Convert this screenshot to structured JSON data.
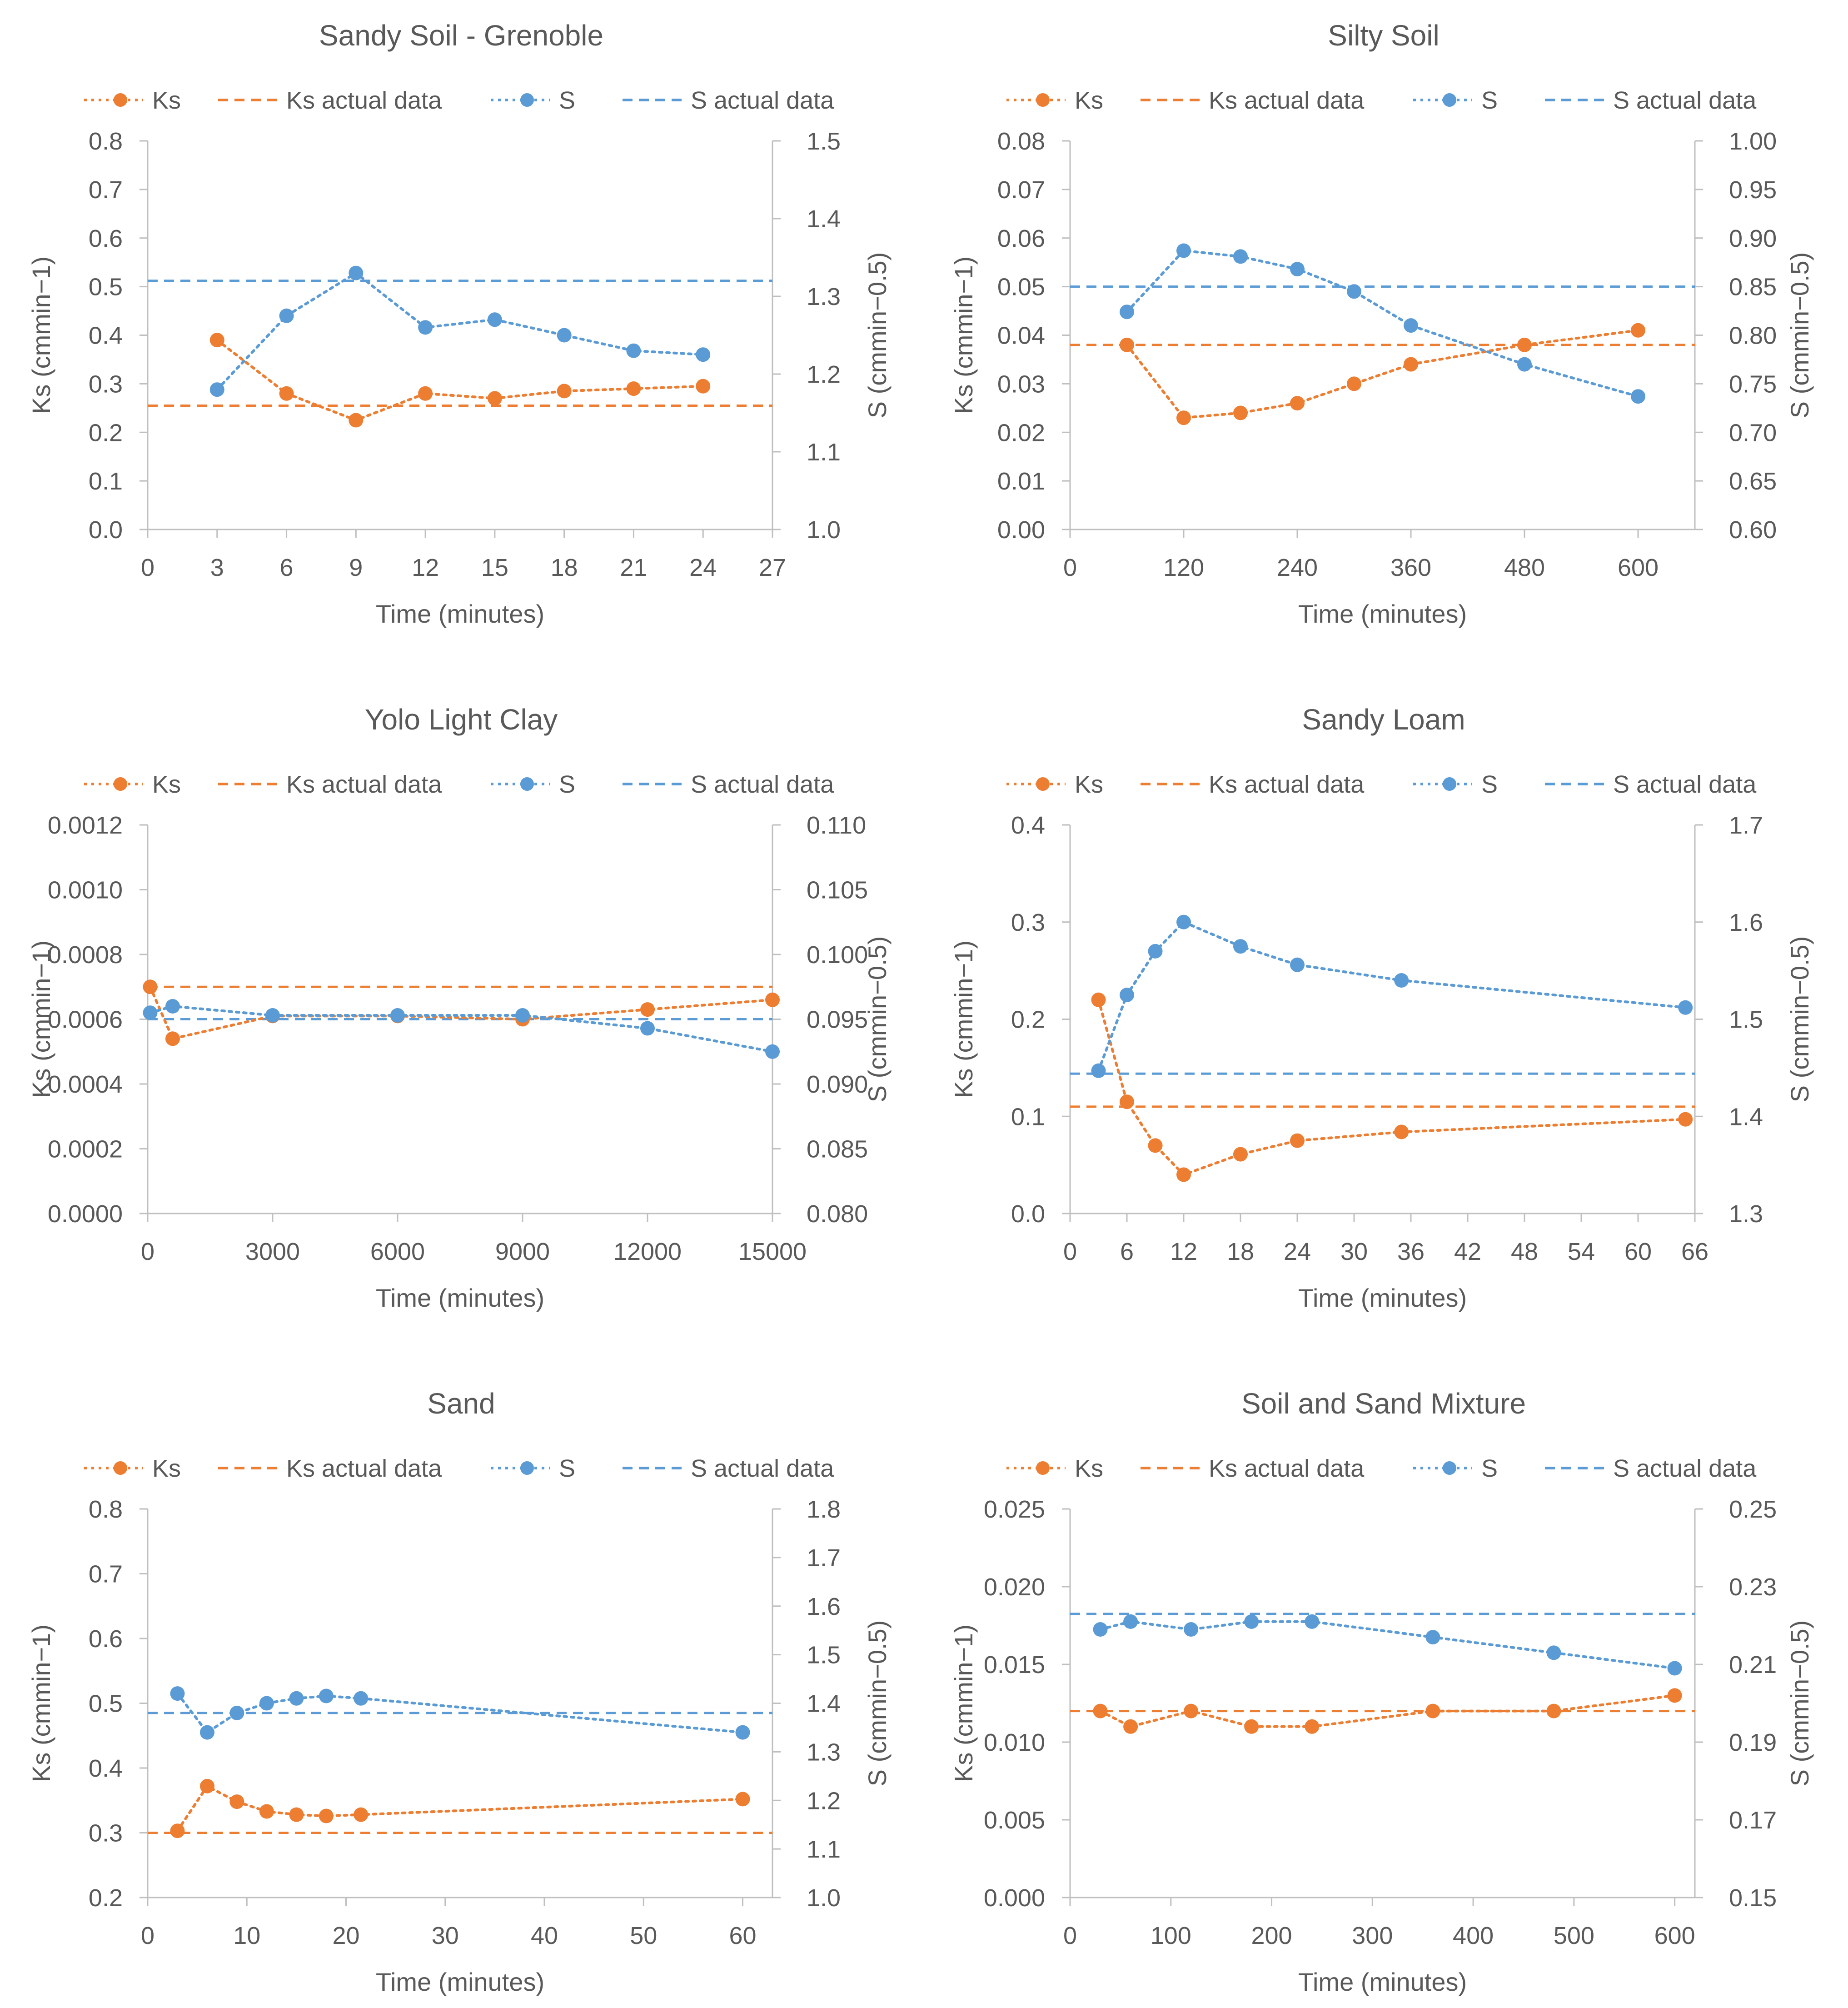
{
  "figure": {
    "colors": {
      "ks": "#ED7D31",
      "s": "#5B9BD5",
      "text": "#595959",
      "axis": "#BFBFBF"
    },
    "legend_labels": {
      "ks": "Ks",
      "ks_actual": "Ks actual data",
      "s": "S",
      "s_actual": "S actual data"
    },
    "xlabel": "Time (minutes)",
    "ylabel_left": "Ks (cmmin−1)",
    "ylabel_right": "S (cmmin−0.5)"
  },
  "chart_data": [
    {
      "type": "line",
      "title": "Sandy Soil - Grenoble",
      "xlabel": "Time (minutes)",
      "ylabel_left": "Ks (cmmin−1)",
      "ylabel_right": "S (cmmin−0.5)",
      "xlim": [
        0,
        27
      ],
      "xticks": [
        0,
        3,
        6,
        9,
        12,
        15,
        18,
        21,
        24,
        27
      ],
      "xtick_labels": [
        "0",
        "3",
        "6",
        "9",
        "12",
        "15",
        "18",
        "21",
        "24",
        "27"
      ],
      "ylim_left": [
        0,
        0.8
      ],
      "yticks_left": [
        "0.0",
        "0.1",
        "0.2",
        "0.3",
        "0.4",
        "0.5",
        "0.6",
        "0.7",
        "0.8"
      ],
      "ylim_right": [
        1.0,
        1.5
      ],
      "yticks_right": [
        "1.0",
        "1.1",
        "1.2",
        "1.3",
        "1.4",
        "1.5"
      ],
      "ks_actual": 0.255,
      "s_actual": 1.32,
      "series": [
        {
          "name": "Ks",
          "axis": "left",
          "x": [
            3,
            6,
            9,
            12,
            15,
            18,
            21,
            24
          ],
          "values": [
            0.39,
            0.28,
            0.225,
            0.28,
            0.27,
            0.285,
            0.29,
            0.295
          ]
        },
        {
          "name": "S",
          "axis": "right",
          "x": [
            3,
            6,
            9,
            12,
            15,
            18,
            21,
            24
          ],
          "values": [
            1.18,
            1.275,
            1.33,
            1.26,
            1.27,
            1.25,
            1.23,
            1.225
          ]
        }
      ]
    },
    {
      "type": "line",
      "title": "Silty Soil",
      "xlabel": "Time (minutes)",
      "ylabel_left": "Ks (cmmin−1)",
      "ylabel_right": "S (cmmin−0.5)",
      "xlim": [
        0,
        660
      ],
      "xticks": [
        0,
        120,
        240,
        360,
        480,
        600
      ],
      "xtick_labels": [
        "0",
        "120",
        "240",
        "360",
        "480",
        "600"
      ],
      "ylim_left": [
        0,
        0.08
      ],
      "yticks_left": [
        "0.00",
        "0.01",
        "0.02",
        "0.03",
        "0.04",
        "0.05",
        "0.06",
        "0.07",
        "0.08"
      ],
      "ylim_right": [
        0.6,
        1.0
      ],
      "yticks_right": [
        "0.60",
        "0.65",
        "0.70",
        "0.75",
        "0.80",
        "0.85",
        "0.90",
        "0.95",
        "1.00"
      ],
      "ks_actual": 0.038,
      "s_actual": 0.85,
      "series": [
        {
          "name": "Ks",
          "axis": "left",
          "x": [
            60,
            120,
            180,
            240,
            300,
            360,
            480,
            600
          ],
          "values": [
            0.038,
            0.023,
            0.024,
            0.026,
            0.03,
            0.034,
            0.038,
            0.041
          ]
        },
        {
          "name": "S",
          "axis": "right",
          "x": [
            60,
            120,
            180,
            240,
            300,
            360,
            480,
            600
          ],
          "values": [
            0.824,
            0.887,
            0.881,
            0.868,
            0.845,
            0.81,
            0.77,
            0.737
          ]
        }
      ]
    },
    {
      "type": "line",
      "title": "Yolo Light Clay",
      "xlabel": "Time (minutes)",
      "ylabel_left": "Ks (cmmin−1)",
      "ylabel_right": "S (cmmin−0.5)",
      "xlim": [
        0,
        15000
      ],
      "xticks": [
        0,
        3000,
        6000,
        9000,
        12000,
        15000
      ],
      "xtick_labels": [
        "0",
        "3000",
        "6000",
        "9000",
        "12000",
        "15000"
      ],
      "ylim_left": [
        0,
        0.0012
      ],
      "yticks_left": [
        "0.0000",
        "0.0002",
        "0.0004",
        "0.0006",
        "0.0008",
        "0.0010",
        "0.0012"
      ],
      "ylim_right": [
        0.08,
        0.11
      ],
      "yticks_right": [
        "0.080",
        "0.085",
        "0.090",
        "0.095",
        "0.100",
        "0.105",
        "0.110"
      ],
      "ks_actual": 0.0007,
      "s_actual": 0.095,
      "series": [
        {
          "name": "Ks",
          "axis": "left",
          "x": [
            60,
            600,
            3000,
            6000,
            9000,
            12000,
            15000
          ],
          "values": [
            0.0007,
            0.00054,
            0.00061,
            0.00061,
            0.0006,
            0.00063,
            0.00066
          ]
        },
        {
          "name": "S",
          "axis": "right",
          "x": [
            60,
            600,
            3000,
            6000,
            9000,
            12000,
            15000
          ],
          "values": [
            0.0955,
            0.096,
            0.0953,
            0.0953,
            0.0953,
            0.0943,
            0.0925
          ]
        }
      ]
    },
    {
      "type": "line",
      "title": "Sandy Loam",
      "xlabel": "Time (minutes)",
      "ylabel_left": "Ks (cmmin−1)",
      "ylabel_right": "S (cmmin−0.5)",
      "xlim": [
        0,
        66
      ],
      "xticks": [
        0,
        6,
        12,
        18,
        24,
        30,
        36,
        42,
        48,
        54,
        60,
        66
      ],
      "xtick_labels": [
        "0",
        "6",
        "12",
        "18",
        "24",
        "30",
        "36",
        "42",
        "48",
        "54",
        "60",
        "66"
      ],
      "ylim_left": [
        0,
        0.4
      ],
      "yticks_left": [
        "0.0",
        "0.1",
        "0.2",
        "0.3",
        "0.4"
      ],
      "ylim_right": [
        1.3,
        1.7
      ],
      "yticks_right": [
        "1.3",
        "1.4",
        "1.5",
        "1.6",
        "1.7"
      ],
      "ks_actual": 0.11,
      "s_actual": 1.444,
      "series": [
        {
          "name": "Ks",
          "axis": "left",
          "x": [
            3,
            6,
            9,
            12,
            18,
            24,
            35,
            65
          ],
          "values": [
            0.22,
            0.115,
            0.07,
            0.04,
            0.061,
            0.075,
            0.084,
            0.097
          ]
        },
        {
          "name": "S",
          "axis": "right",
          "x": [
            3,
            6,
            9,
            12,
            18,
            24,
            35,
            65
          ],
          "values": [
            1.447,
            1.525,
            1.57,
            1.6,
            1.575,
            1.556,
            1.54,
            1.512
          ]
        }
      ]
    },
    {
      "type": "line",
      "title": "Sand",
      "xlabel": "Time (minutes)",
      "ylabel_left": "Ks (cmmin−1)",
      "ylabel_right": "S (cmmin−0.5)",
      "xlim": [
        0,
        63
      ],
      "xticks": [
        0,
        10,
        20,
        30,
        40,
        50,
        60
      ],
      "xtick_labels": [
        "0",
        "10",
        "20",
        "30",
        "40",
        "50",
        "60"
      ],
      "ylim_left": [
        0.2,
        0.8
      ],
      "yticks_left": [
        "0.2",
        "0.3",
        "0.4",
        "0.5",
        "0.6",
        "0.7",
        "0.8"
      ],
      "ylim_right": [
        1.0,
        1.8
      ],
      "yticks_right": [
        "1.0",
        "1.1",
        "1.2",
        "1.3",
        "1.4",
        "1.5",
        "1.6",
        "1.7",
        "1.8"
      ],
      "ks_actual": 0.3,
      "s_actual": 1.38,
      "series": [
        {
          "name": "Ks",
          "axis": "left",
          "x": [
            3,
            6,
            9,
            12,
            15,
            18,
            21.5,
            60
          ],
          "values": [
            0.303,
            0.372,
            0.348,
            0.333,
            0.328,
            0.326,
            0.328,
            0.352
          ]
        },
        {
          "name": "S",
          "axis": "right",
          "x": [
            3,
            6,
            9,
            12,
            15,
            18,
            21.5,
            60
          ],
          "values": [
            1.42,
            1.34,
            1.38,
            1.4,
            1.41,
            1.415,
            1.41,
            1.34
          ]
        }
      ]
    },
    {
      "type": "line",
      "title": "Soil and Sand Mixture",
      "xlabel": "Time (minutes)",
      "ylabel_left": "Ks (cmmin−1)",
      "ylabel_right": "S (cmmin−0.5)",
      "xlim": [
        0,
        620
      ],
      "xticks": [
        0,
        100,
        200,
        300,
        400,
        500,
        600
      ],
      "xtick_labels": [
        "0",
        "100",
        "200",
        "300",
        "400",
        "500",
        "600"
      ],
      "ylim_left": [
        0,
        0.025
      ],
      "yticks_left": [
        "0.000",
        "0.005",
        "0.010",
        "0.015",
        "0.020",
        "0.025"
      ],
      "ylim_right": [
        0.15,
        0.25
      ],
      "yticks_right": [
        "0.15",
        "0.17",
        "0.19",
        "0.21",
        "0.23",
        "0.25"
      ],
      "ks_actual": 0.012,
      "s_actual": 0.223,
      "series": [
        {
          "name": "Ks",
          "axis": "left",
          "x": [
            30,
            60,
            120,
            180,
            240,
            360,
            480,
            600
          ],
          "values": [
            0.012,
            0.011,
            0.012,
            0.011,
            0.011,
            0.012,
            0.012,
            0.013
          ]
        },
        {
          "name": "S",
          "axis": "right",
          "x": [
            30,
            60,
            120,
            180,
            240,
            360,
            480,
            600
          ],
          "values": [
            0.219,
            0.221,
            0.219,
            0.221,
            0.221,
            0.217,
            0.213,
            0.209
          ]
        }
      ]
    }
  ]
}
